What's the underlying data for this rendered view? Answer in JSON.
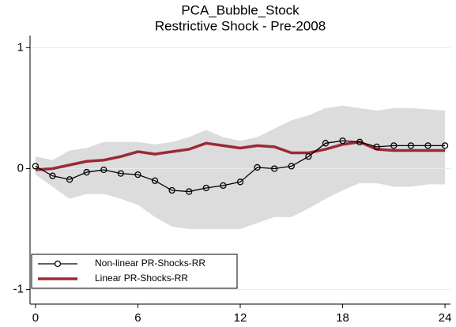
{
  "chart_data": {
    "type": "line",
    "title": "PCA_Bubble_Stock",
    "subtitle": "Restrictive Shock - Pre-2008",
    "x": [
      0,
      1,
      2,
      3,
      4,
      5,
      6,
      7,
      8,
      9,
      10,
      11,
      12,
      13,
      14,
      15,
      16,
      17,
      18,
      19,
      20,
      21,
      22,
      23,
      24
    ],
    "series": [
      {
        "name": "Non-linear PR-Shocks-RR",
        "color": "#000000",
        "markers": true,
        "values": [
          0.02,
          -0.06,
          -0.09,
          -0.03,
          -0.01,
          -0.04,
          -0.05,
          -0.1,
          -0.18,
          -0.19,
          -0.16,
          -0.14,
          -0.11,
          0.01,
          0.0,
          0.02,
          0.1,
          0.21,
          0.23,
          0.22,
          0.18,
          0.19,
          0.19,
          0.19,
          0.19
        ]
      },
      {
        "name": "Linear PR-Shocks-RR",
        "color": "#9b2a33",
        "markers": false,
        "values": [
          -0.01,
          0.0,
          0.03,
          0.06,
          0.07,
          0.1,
          0.14,
          0.12,
          0.14,
          0.16,
          0.21,
          0.19,
          0.17,
          0.19,
          0.18,
          0.13,
          0.13,
          0.16,
          0.2,
          0.22,
          0.16,
          0.15,
          0.15,
          0.15,
          0.15
        ]
      }
    ],
    "band": {
      "color": "#dcdcdc",
      "upper": [
        0.1,
        0.07,
        0.15,
        0.17,
        0.22,
        0.22,
        0.22,
        0.2,
        0.22,
        0.26,
        0.32,
        0.26,
        0.23,
        0.26,
        0.33,
        0.4,
        0.44,
        0.5,
        0.52,
        0.5,
        0.48,
        0.5,
        0.5,
        0.49,
        0.48
      ],
      "lower": [
        -0.05,
        -0.15,
        -0.25,
        -0.21,
        -0.21,
        -0.25,
        -0.3,
        -0.4,
        -0.48,
        -0.5,
        -0.5,
        -0.5,
        -0.5,
        -0.45,
        -0.4,
        -0.4,
        -0.33,
        -0.25,
        -0.18,
        -0.12,
        -0.12,
        -0.15,
        -0.15,
        -0.13,
        -0.13
      ]
    },
    "xlim": [
      -0.32,
      24.32
    ],
    "xticks": [
      0,
      6,
      12,
      18,
      24
    ],
    "ylim": [
      -1.12,
      1.1
    ],
    "yticks": [
      -1,
      0,
      1
    ],
    "grid": true,
    "legend": "bottom-left"
  }
}
